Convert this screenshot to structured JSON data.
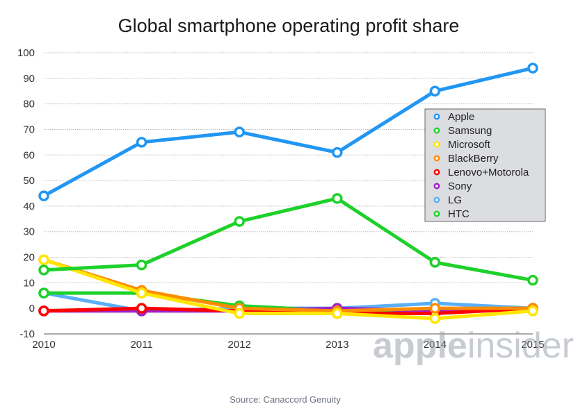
{
  "chart_data": {
    "type": "line",
    "title": "Global smartphone operating profit share",
    "xlabel": "",
    "ylabel": "",
    "x": [
      "2010",
      "2011",
      "2012",
      "2013",
      "2014",
      "2015"
    ],
    "ylim": [
      -10,
      100
    ],
    "yticks": [
      100,
      90,
      80,
      70,
      60,
      50,
      40,
      30,
      20,
      10,
      0,
      -10
    ],
    "grid": true,
    "legend_position": "right",
    "series": [
      {
        "name": "Apple",
        "color": "#2196f3",
        "values": [
          44,
          65,
          69,
          61,
          85,
          94
        ]
      },
      {
        "name": "Samsung",
        "color": "#1ed12a",
        "values": [
          15,
          17,
          34,
          43,
          18,
          11
        ]
      },
      {
        "name": "Microsoft",
        "color": "#ffe600",
        "values": [
          19,
          6,
          -2,
          -2,
          -4,
          -1
        ]
      },
      {
        "name": "BlackBerry",
        "color": "#ff8c00",
        "values": [
          19,
          7,
          0,
          -1,
          0,
          0
        ]
      },
      {
        "name": "Lenovo+Motorola",
        "color": "#ff0000",
        "values": [
          -1,
          0,
          -1,
          -2,
          -2,
          0
        ]
      },
      {
        "name": "Sony",
        "color": "#a020c8",
        "values": [
          -1,
          -1,
          -1,
          0,
          -1,
          0
        ]
      },
      {
        "name": "LG",
        "color": "#5aaff7",
        "values": [
          6,
          -1,
          0,
          0,
          2,
          0
        ]
      },
      {
        "name": "HTC",
        "color": "#1ed12a",
        "values": [
          6,
          6,
          1,
          -1,
          -1,
          0
        ]
      }
    ]
  },
  "source": "Source: Canaccord Genuity",
  "watermark": {
    "bold": "apple",
    "light": "insider"
  }
}
